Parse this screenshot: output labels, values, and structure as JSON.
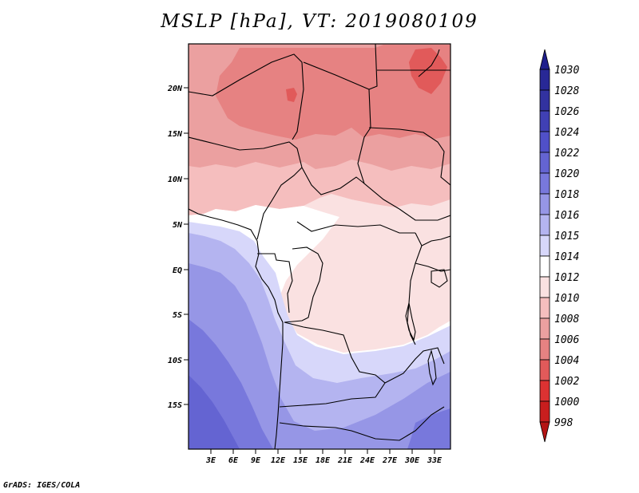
{
  "title": "MSLP [hPa], VT: 2019080109",
  "footer": "GrADS: IGES/COLA",
  "map": {
    "lat_labels": [
      "20N",
      "15N",
      "10N",
      "5N",
      "EQ",
      "5S",
      "10S",
      "15S"
    ],
    "lon_labels": [
      "3E",
      "6E",
      "9E",
      "12E",
      "15E",
      "18E",
      "21E",
      "24E",
      "27E",
      "30E",
      "33E"
    ]
  },
  "colorbar": {
    "labels": [
      "1030",
      "1028",
      "1026",
      "1024",
      "1022",
      "1020",
      "1018",
      "1016",
      "1015",
      "1014",
      "1012",
      "1010",
      "1008",
      "1006",
      "1004",
      "1002",
      "1000",
      "998"
    ],
    "colors": {
      "top_arrow": "#1e1e8c",
      "1028": "#282896",
      "1026": "#3232a0",
      "1024": "#4040b4",
      "1022": "#5050c8",
      "1020": "#6464d2",
      "1018": "#7878dc",
      "1016": "#9696e6",
      "1015": "#b4b4f0",
      "1014": "#d7d7fa",
      "1012": "#ffffff",
      "1010": "#fae1e1",
      "1008": "#f5bebe",
      "1006": "#eba0a0",
      "1004": "#e68282",
      "1002": "#e15a5a",
      "1000": "#dc3232",
      "998": "#c81e1e",
      "bottom_arrow": "#b41414"
    }
  }
}
